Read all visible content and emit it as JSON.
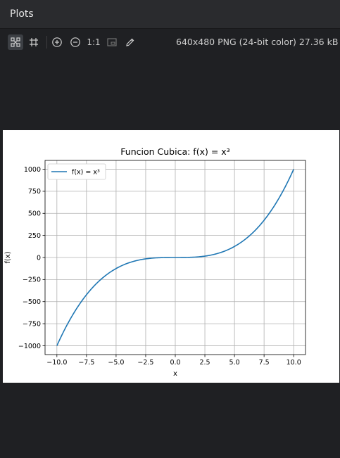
{
  "panel": {
    "title": "Plots"
  },
  "toolbar": {
    "zoom_reset_label": "1:1",
    "image_info": "640x480 PNG (24-bit color) 27.36 kB",
    "icons": [
      "fit-icon",
      "grid-icon",
      "zoom-in-icon",
      "zoom-out-icon",
      "actual-size",
      "background-icon",
      "color-picker-icon"
    ]
  },
  "chart_data": {
    "type": "line",
    "title": "Funcion Cubica: f(x) = x³",
    "xlabel": "x",
    "ylabel": "f(x)",
    "xlim": [
      -11,
      11
    ],
    "ylim": [
      -1100,
      1100
    ],
    "xticks": [
      -10.0,
      -7.5,
      -5.0,
      -2.5,
      0.0,
      2.5,
      5.0,
      7.5,
      10.0
    ],
    "xtick_labels": [
      "−10.0",
      "−7.5",
      "−5.0",
      "−2.5",
      "0.0",
      "2.5",
      "5.0",
      "7.5",
      "10.0"
    ],
    "yticks": [
      -1000,
      -750,
      -500,
      -250,
      0,
      250,
      500,
      750,
      1000
    ],
    "ytick_labels": [
      "−1000",
      "−750",
      "−500",
      "−250",
      "0",
      "250",
      "500",
      "750",
      "1000"
    ],
    "grid": true,
    "legend": {
      "placement": "upper-left",
      "entry": "f(x) = x³"
    },
    "series": [
      {
        "name": "f(x) = x³",
        "color": "#1f77b4",
        "x": [
          -10,
          -9,
          -8,
          -7,
          -6,
          -5,
          -4,
          -3,
          -2,
          -1,
          0,
          1,
          2,
          3,
          4,
          5,
          6,
          7,
          8,
          9,
          10
        ],
        "y": [
          -1000,
          -729,
          -512,
          -343,
          -216,
          -125,
          -64,
          -27,
          -8,
          -1,
          0,
          1,
          8,
          27,
          64,
          125,
          216,
          343,
          512,
          729,
          1000
        ]
      }
    ]
  }
}
